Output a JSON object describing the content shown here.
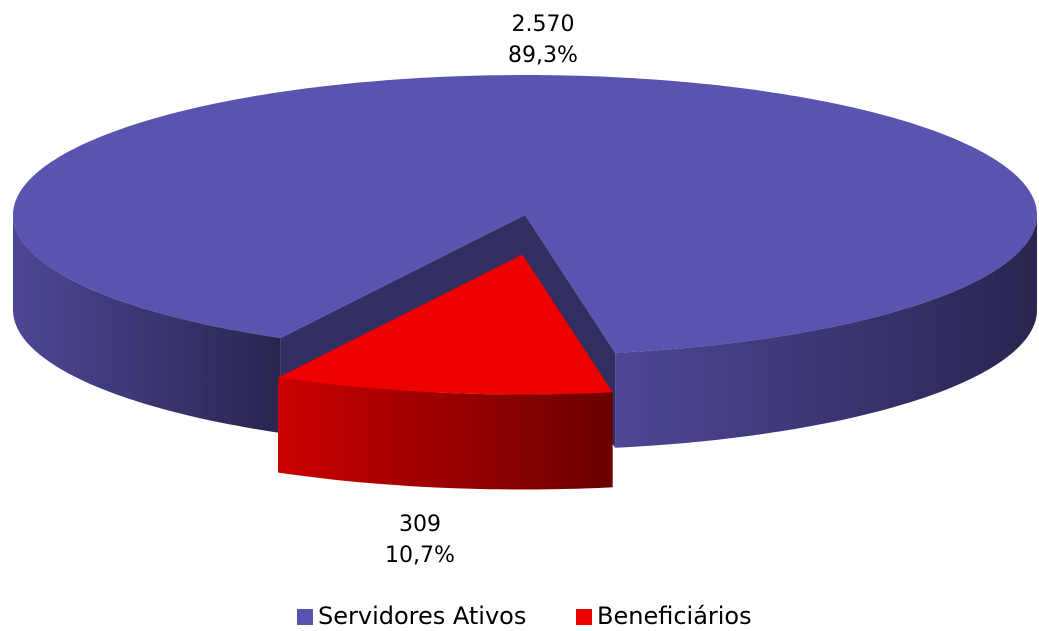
{
  "chart_data": {
    "type": "pie3d",
    "categories": [
      "Servidores Ativos",
      "Beneficiários"
    ],
    "values": [
      2570,
      309
    ],
    "value_labels": [
      "2.570",
      "309"
    ],
    "percentages": [
      89.3,
      10.7
    ],
    "percentage_labels": [
      "89,3%",
      "10,7%"
    ],
    "colors": [
      "#5b53b0",
      "#ee0000"
    ],
    "legend": "bottom"
  }
}
